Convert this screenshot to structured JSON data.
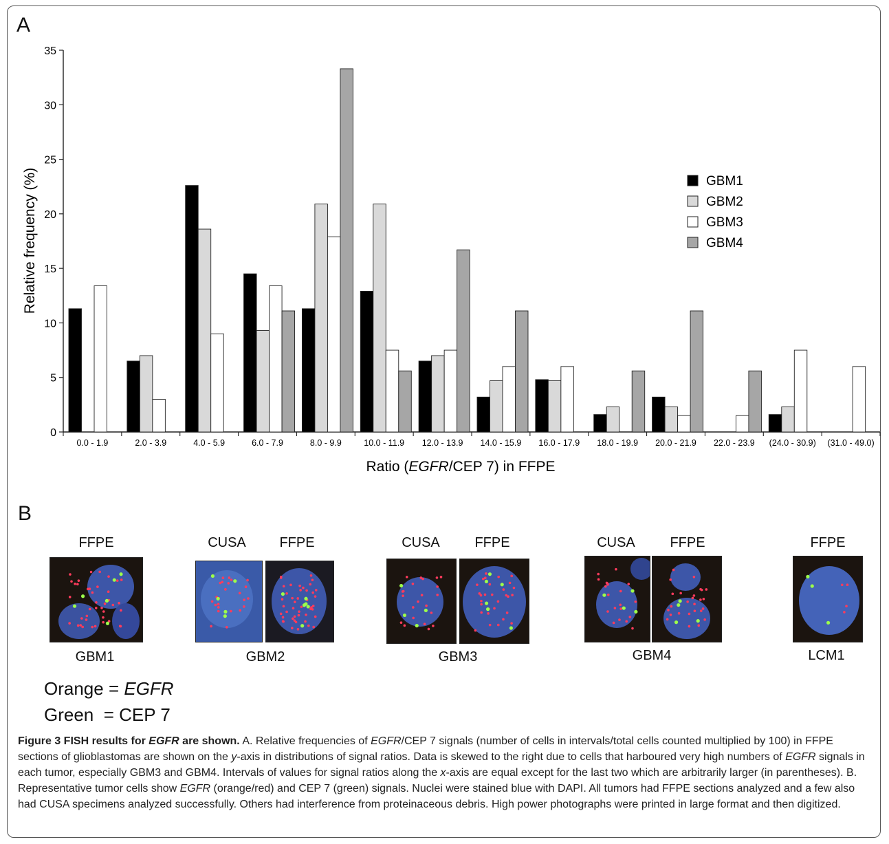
{
  "panel_a_label": "A",
  "panel_b_label": "B",
  "chart_data": {
    "type": "bar",
    "ylabel": "Relative frequency (%)",
    "xlabel_parts": [
      "Ratio (",
      "EGFR",
      "/CEP 7) in FFPE"
    ],
    "ylim": [
      0,
      35
    ],
    "yticks": [
      0,
      5,
      10,
      15,
      20,
      25,
      30,
      35
    ],
    "grid": false,
    "legend_position": "right",
    "categories": [
      "0.0 - 1.9",
      "2.0 - 3.9",
      "4.0 - 5.9",
      "6.0 - 7.9",
      "8.0 - 9.9",
      "10.0 - 11.9",
      "12.0 - 13.9",
      "14.0 - 15.9",
      "16.0 - 17.9",
      "18.0 - 19.9",
      "20.0 - 21.9",
      "22.0 - 23.9",
      "(24.0 - 30.9)",
      "(31.0 - 49.0)"
    ],
    "series": [
      {
        "name": "GBM1",
        "color": "#000000",
        "values": [
          11.3,
          6.5,
          22.6,
          14.5,
          11.3,
          12.9,
          6.5,
          3.2,
          4.8,
          1.6,
          3.2,
          0,
          1.6,
          0
        ]
      },
      {
        "name": "GBM2",
        "color": "#d9d9d9",
        "values": [
          0,
          7.0,
          18.6,
          9.3,
          20.9,
          20.9,
          7.0,
          4.7,
          4.7,
          2.3,
          2.3,
          0,
          2.3,
          0
        ]
      },
      {
        "name": "GBM3",
        "color": "#ffffff",
        "values": [
          13.4,
          3.0,
          9.0,
          13.4,
          17.9,
          7.5,
          7.5,
          6.0,
          6.0,
          0,
          1.5,
          1.5,
          7.5,
          6.0
        ]
      },
      {
        "name": "GBM4",
        "color": "#a6a6a6",
        "values": [
          0,
          0,
          0,
          11.1,
          33.3,
          5.6,
          16.7,
          11.1,
          0,
          5.6,
          11.1,
          5.6,
          0,
          0
        ]
      }
    ]
  },
  "panel_b": {
    "groups": [
      {
        "headers": [
          "FFPE"
        ],
        "sample": "GBM1"
      },
      {
        "headers": [
          "CUSA",
          "FFPE"
        ],
        "sample": "GBM2"
      },
      {
        "headers": [
          "CUSA",
          "FFPE"
        ],
        "sample": "GBM3"
      },
      {
        "headers": [
          "CUSA",
          "FFPE"
        ],
        "sample": "GBM4"
      },
      {
        "headers": [
          "FFPE"
        ],
        "sample": "LCM1"
      }
    ],
    "key": {
      "orange_label": "Orange = ",
      "orange_value": "EGFR",
      "green_label": "Green  = ",
      "green_value": "CEP 7"
    },
    "colors": {
      "nucleus": "#3d56a8",
      "background": "#1b140f",
      "egfr_signal": "#ff3b5c",
      "cep7_signal": "#9dff4a"
    }
  },
  "caption": {
    "title_a": "Figure 3 FISH results for ",
    "title_b": "EGFR",
    "title_c": " are shown.",
    "p1": " A. Relative frequencies of ",
    "p2": "EGFR",
    "p3": "/CEP 7 signals (number of cells in intervals/total cells counted multiplied by 100) in FFPE sections of glioblastomas are shown on the ",
    "p4": "y",
    "p5": "-axis in distributions of signal ratios. Data is skewed to the right due to cells that harboured very high numbers of ",
    "p6": "EGFR",
    "p7": " signals in each tumor, especially GBM3 and GBM4. Intervals of values for signal ratios along the ",
    "p8": "x",
    "p9": "-axis are equal except for the last two which are arbitrarily larger (in parentheses). B. Representative tumor cells show ",
    "p10": "EGFR",
    "p11": " (orange/red) and CEP 7 (green) signals. Nuclei were stained blue with DAPI. All tumors had FFPE sections analyzed and a few also had CUSA specimens analyzed successfully. Others had interference from proteinaceous debris. High power photographs were printed in large format and then digitized."
  }
}
